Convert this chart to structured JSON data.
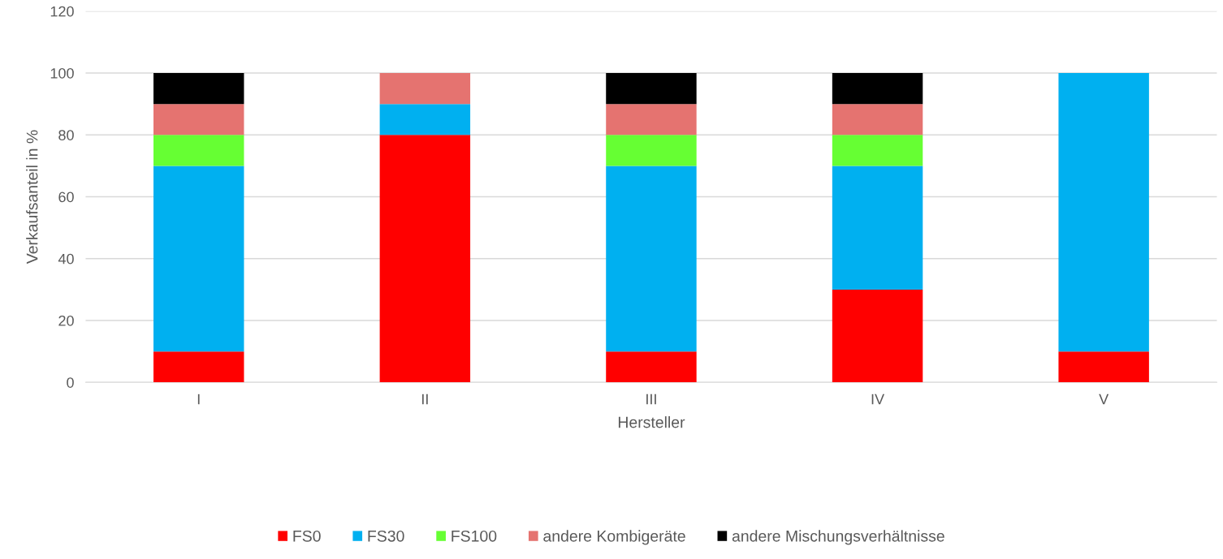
{
  "chart_data": {
    "type": "bar",
    "stacked": true,
    "xlabel": "Hersteller",
    "ylabel": "Verkaufsanteil in %",
    "categories": [
      "I",
      "II",
      "III",
      "IV",
      "V"
    ],
    "series": [
      {
        "name": "FS0",
        "color": "#ff0000",
        "values": [
          10,
          80,
          10,
          30,
          10
        ]
      },
      {
        "name": "FS30",
        "color": "#00b0f0",
        "values": [
          60,
          10,
          60,
          40,
          90
        ]
      },
      {
        "name": "FS100",
        "color": "#66ff33",
        "values": [
          10,
          null,
          10,
          10,
          null
        ]
      },
      {
        "name": "andere Kombigeräte",
        "color": "#e57370",
        "values": [
          10,
          10,
          10,
          10,
          null
        ]
      },
      {
        "name": "andere Mischungsverhältnisse",
        "color": "#000000",
        "values": [
          10,
          null,
          10,
          10,
          null
        ]
      }
    ],
    "ylim": [
      0,
      120
    ],
    "yticks": [
      0,
      20,
      40,
      60,
      80,
      100,
      120
    ],
    "grid": "y",
    "legend": "bottom"
  }
}
